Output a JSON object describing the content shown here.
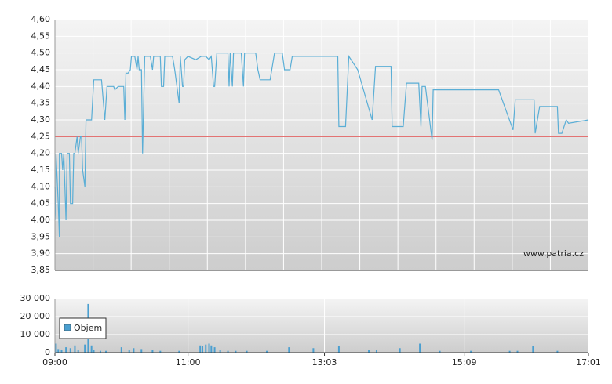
{
  "chart_data": [
    {
      "type": "line",
      "color": "#5aaed6",
      "watermark": "www.patria.cz",
      "reference_line": 4.25,
      "reference_color": "#e06060",
      "xlim": [
        0,
        481
      ],
      "ylim": [
        3.85,
        4.6
      ],
      "grid": true,
      "yticks": [
        {
          "value": 3.85,
          "label": "3,85"
        },
        {
          "value": 3.9,
          "label": "3,90"
        },
        {
          "value": 3.95,
          "label": "3,95"
        },
        {
          "value": 4.0,
          "label": "4,00"
        },
        {
          "value": 4.05,
          "label": "4,05"
        },
        {
          "value": 4.1,
          "label": "4,10"
        },
        {
          "value": 4.15,
          "label": "4,15"
        },
        {
          "value": 4.2,
          "label": "4,20"
        },
        {
          "value": 4.25,
          "label": "4,25"
        },
        {
          "value": 4.3,
          "label": "4,30"
        },
        {
          "value": 4.35,
          "label": "4,35"
        },
        {
          "value": 4.4,
          "label": "4,40"
        },
        {
          "value": 4.45,
          "label": "4,45"
        },
        {
          "value": 4.5,
          "label": "4,50"
        },
        {
          "value": 4.55,
          "label": "4,55"
        },
        {
          "value": 4.6,
          "label": "4,60"
        }
      ],
      "x": [
        0,
        1,
        1,
        3,
        4,
        4,
        6,
        7,
        8,
        10,
        11,
        13,
        14,
        16,
        17,
        18,
        20,
        21,
        23,
        24,
        25,
        27,
        28,
        33,
        35,
        42,
        45,
        47,
        53,
        54,
        57,
        62,
        63,
        64,
        66,
        68,
        69,
        72,
        74,
        75,
        76,
        78,
        79,
        81,
        86,
        88,
        89,
        95,
        96,
        98,
        99,
        106,
        108,
        112,
        113,
        115,
        116,
        117,
        120,
        127,
        132,
        136,
        139,
        141,
        143,
        144,
        146,
        156,
        157,
        158,
        160,
        161,
        168,
        170,
        171,
        181,
        183,
        185,
        194,
        198,
        205,
        207,
        212,
        214,
        255,
        256,
        262,
        265,
        273,
        286,
        289,
        303,
        304,
        314,
        317,
        328,
        330,
        331,
        334,
        340,
        341,
        400,
        413,
        415,
        432,
        433,
        437,
        453,
        454,
        457,
        461,
        463,
        481
      ],
      "values": [
        4.1,
        4.0,
        4.2,
        4.05,
        3.95,
        4.2,
        4.2,
        4.15,
        4.2,
        4.0,
        4.2,
        4.2,
        4.05,
        4.05,
        4.2,
        4.2,
        4.25,
        4.2,
        4.25,
        4.25,
        4.15,
        4.1,
        4.3,
        4.3,
        4.42,
        4.42,
        4.3,
        4.4,
        4.4,
        4.39,
        4.4,
        4.4,
        4.3,
        4.44,
        4.44,
        4.45,
        4.49,
        4.49,
        4.45,
        4.49,
        4.45,
        4.45,
        4.2,
        4.49,
        4.49,
        4.45,
        4.49,
        4.49,
        4.4,
        4.4,
        4.49,
        4.49,
        4.45,
        4.35,
        4.49,
        4.4,
        4.4,
        4.48,
        4.49,
        4.48,
        4.49,
        4.49,
        4.48,
        4.49,
        4.4,
        4.4,
        4.5,
        4.5,
        4.4,
        4.5,
        4.4,
        4.5,
        4.5,
        4.4,
        4.5,
        4.5,
        4.45,
        4.42,
        4.42,
        4.5,
        4.5,
        4.45,
        4.45,
        4.49,
        4.49,
        4.28,
        4.28,
        4.49,
        4.45,
        4.3,
        4.46,
        4.46,
        4.28,
        4.28,
        4.41,
        4.41,
        4.28,
        4.4,
        4.4,
        4.24,
        4.39,
        4.39,
        4.27,
        4.36,
        4.36,
        4.26,
        4.34,
        4.34,
        4.26,
        4.26,
        4.3,
        4.29,
        4.3
      ]
    },
    {
      "type": "bar",
      "xlim": [
        0,
        481
      ],
      "ylim": [
        0,
        30000
      ],
      "grid": true,
      "yticks": [
        0,
        {
          "value": 10000,
          "label": "10 000"
        },
        {
          "value": 20000,
          "label": "20 000"
        },
        {
          "value": 30000,
          "label": "30 000"
        }
      ],
      "xticks": [
        {
          "value": 0,
          "label": "09:00"
        },
        {
          "value": 120,
          "label": "11:00"
        },
        {
          "value": 243,
          "label": "13:03"
        },
        {
          "value": 369,
          "label": "15:09"
        },
        {
          "value": 481,
          "label": "17:01"
        }
      ],
      "x": [
        1,
        3,
        6,
        10,
        14,
        18,
        21,
        27,
        30,
        33,
        35,
        41,
        46,
        60,
        67,
        71,
        78,
        88,
        95,
        112,
        131,
        133,
        136,
        139,
        141,
        144,
        149,
        156,
        163,
        173,
        191,
        211,
        233,
        256,
        283,
        290,
        311,
        329,
        347,
        375,
        410,
        417,
        431,
        453
      ],
      "series": [
        {
          "name": "Objem",
          "color": "#4a9fd0",
          "values": [
            5000,
            2000,
            1500,
            3000,
            2500,
            4000,
            1500,
            4500,
            27000,
            4000,
            1500,
            1000,
            1000,
            3000,
            1500,
            2500,
            2000,
            1500,
            1000,
            1000,
            4000,
            3500,
            4500,
            5000,
            4000,
            3000,
            1500,
            1000,
            1000,
            1000,
            1000,
            3000,
            2500,
            3500,
            1500,
            1500,
            2500,
            5000,
            1000,
            1000,
            1000,
            1000,
            3500,
            1000
          ]
        }
      ]
    }
  ]
}
